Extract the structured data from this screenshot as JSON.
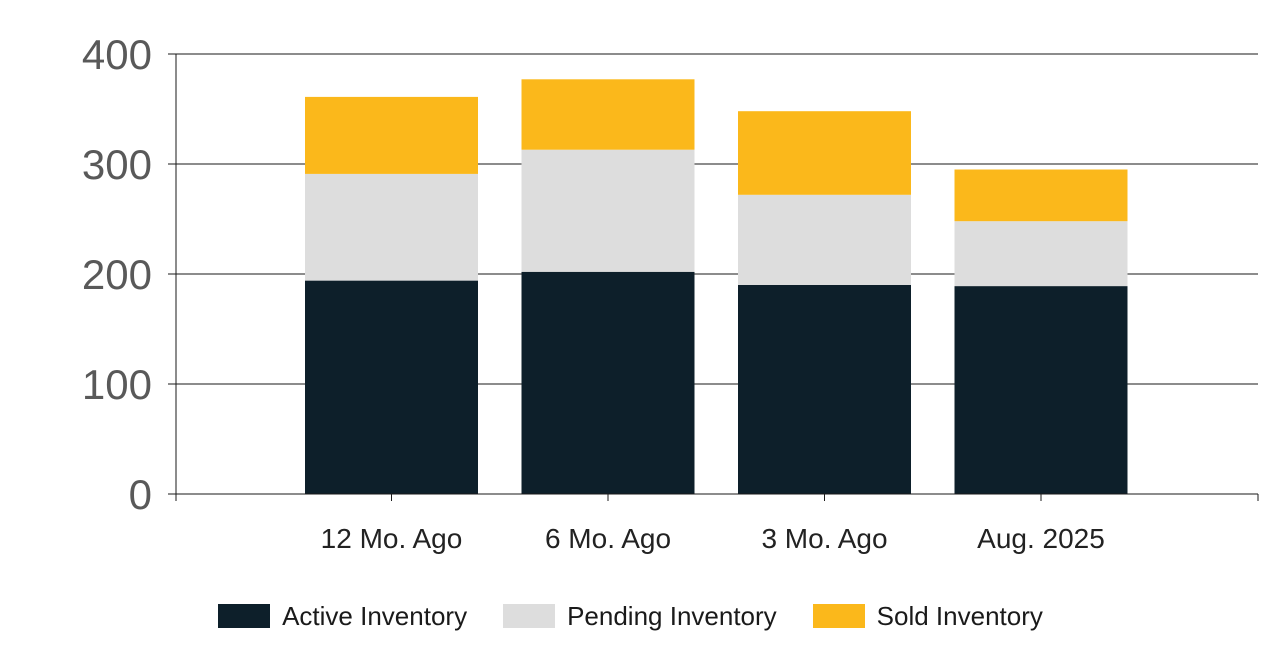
{
  "chart_data": {
    "type": "bar",
    "stacked": true,
    "categories": [
      "12 Mo. Ago",
      "6 Mo. Ago",
      "3 Mo. Ago",
      "Aug. 2025"
    ],
    "series": [
      {
        "name": "Active Inventory",
        "color": "#0d1f2a",
        "values": [
          194,
          202,
          190,
          189
        ]
      },
      {
        "name": "Pending Inventory",
        "color": "#dddddd",
        "values": [
          97,
          111,
          82,
          59
        ]
      },
      {
        "name": "Sold Inventory",
        "color": "#fbb81b",
        "values": [
          70,
          64,
          76,
          47
        ]
      }
    ],
    "ylim": [
      0,
      400
    ],
    "yticks": [
      0,
      100,
      200,
      300,
      400
    ],
    "grid": true,
    "legend_position": "bottom"
  }
}
